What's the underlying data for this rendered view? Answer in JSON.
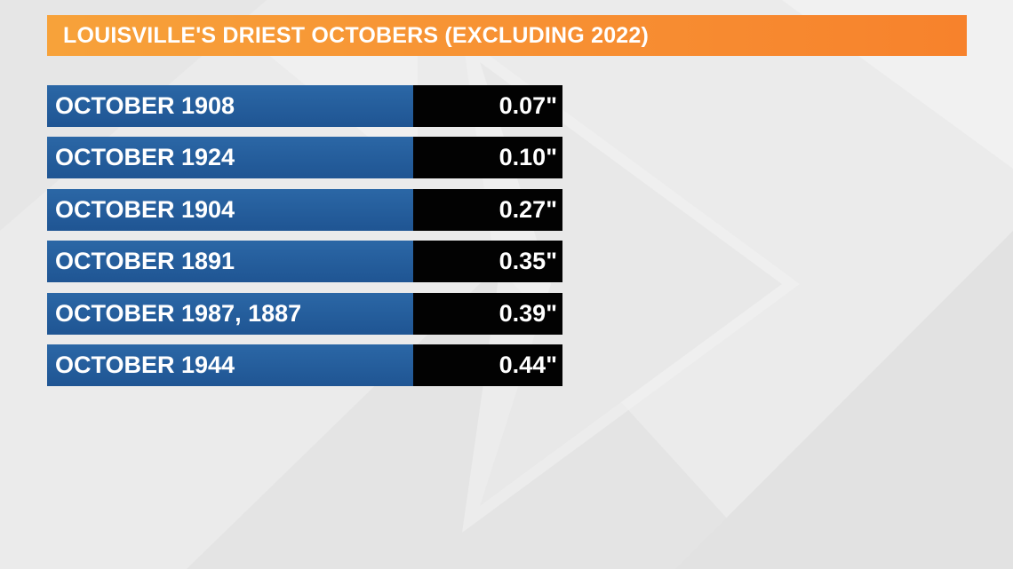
{
  "title": "LOUISVILLE'S DRIEST OCTOBERS (EXCLUDING 2022)",
  "rows": [
    {
      "label": "OCTOBER 1908",
      "value": "0.07\""
    },
    {
      "label": "OCTOBER 1924",
      "value": "0.10\""
    },
    {
      "label": "OCTOBER 1904",
      "value": "0.27\""
    },
    {
      "label": "OCTOBER 1891",
      "value": "0.35\""
    },
    {
      "label": "OCTOBER 1987, 1887",
      "value": "0.39\""
    },
    {
      "label": "OCTOBER 1944",
      "value": "0.44\""
    }
  ],
  "colors": {
    "title_bar": "#f79033",
    "label_cell": "#245d9c",
    "value_cell": "#020202",
    "text": "#ffffff",
    "background": "#ececec"
  }
}
